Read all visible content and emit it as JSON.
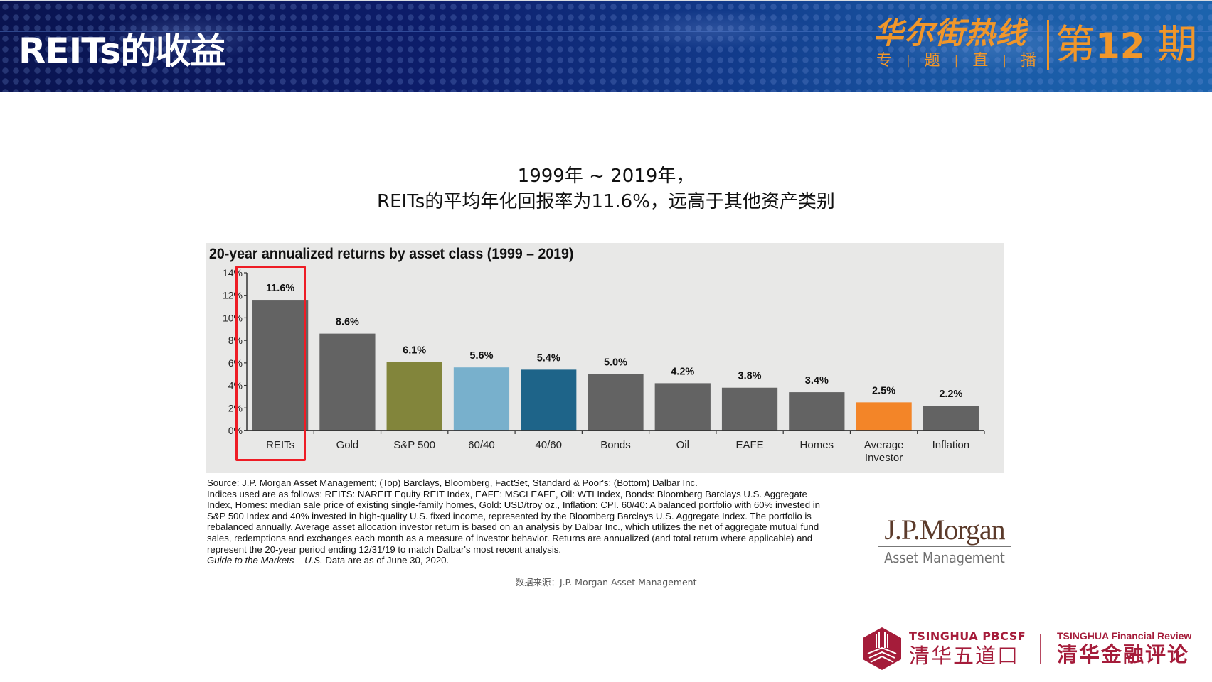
{
  "header": {
    "title": "REITs的收益",
    "brand_main": "华尔街热线",
    "brand_sub": [
      "专",
      "题",
      "直",
      "播"
    ],
    "issue_prefix": "第",
    "issue_number": "12",
    "issue_suffix": "期"
  },
  "headline": {
    "line1": "1999年 ~ 2019年，",
    "line2": "REITs的平均年化回报率为11.6%，远高于其他资产类别"
  },
  "chart_data": {
    "type": "bar",
    "title": "20-year annualized returns by asset class (1999 – 2019)",
    "xlabel": "",
    "ylabel": "",
    "ylim": [
      0,
      14
    ],
    "yticks": [
      0,
      2,
      4,
      6,
      8,
      10,
      12,
      14
    ],
    "ytick_labels": [
      "0%",
      "2%",
      "4%",
      "6%",
      "8%",
      "10%",
      "12%",
      "14%"
    ],
    "grid": false,
    "categories": [
      "REITs",
      "Gold",
      "S&P 500",
      "60/40",
      "40/60",
      "Bonds",
      "Oil",
      "EAFE",
      "Homes",
      "Average Investor",
      "Inflation"
    ],
    "category_lines": [
      [
        "REITs"
      ],
      [
        "Gold"
      ],
      [
        "S&P 500"
      ],
      [
        "60/40"
      ],
      [
        "40/60"
      ],
      [
        "Bonds"
      ],
      [
        "Oil"
      ],
      [
        "EAFE"
      ],
      [
        "Homes"
      ],
      [
        "Average",
        "Investor"
      ],
      [
        "Inflation"
      ]
    ],
    "values": [
      11.6,
      8.6,
      6.1,
      5.6,
      5.4,
      5.0,
      4.2,
      3.8,
      3.4,
      2.5,
      2.2
    ],
    "data_labels": [
      "11.6%",
      "8.6%",
      "6.1%",
      "5.6%",
      "5.4%",
      "5.0%",
      "4.2%",
      "3.8%",
      "3.4%",
      "2.5%",
      "2.2%"
    ],
    "colors": [
      "#636363",
      "#636363",
      "#82853b",
      "#78b0cc",
      "#1e6489",
      "#636363",
      "#636363",
      "#636363",
      "#636363",
      "#f38528",
      "#636363"
    ],
    "highlighted_category": "REITs",
    "highlight_color": "#ee1c25"
  },
  "notes": {
    "lines": [
      "Source: J.P. Morgan Asset Management; (Top) Barclays, Bloomberg, FactSet, Standard & Poor's; (Bottom) Dalbar Inc.",
      "Indices used are as follows: REITS: NAREIT Equity REIT Index, EAFE: MSCI EAFE, Oil: WTI Index, Bonds: Bloomberg Barclays U.S. Aggregate",
      "Index, Homes: median sale price of existing single-family homes, Gold: USD/troy oz., Inflation: CPI. 60/40: A balanced portfolio with 60% invested in",
      "S&P 500 Index and 40% invested in high-quality U.S. fixed income, represented by the Bloomberg Barclays U.S. Aggregate Index. The portfolio is",
      "rebalanced annually. Average asset allocation investor return is based on an analysis by Dalbar Inc., which utilizes the net of aggregate mutual fund",
      "sales, redemptions and exchanges each month as a measure of investor behavior. Returns are annualized (and total return where applicable) and",
      "represent the 20-year period ending 12/31/19 to match Dalbar's most recent analysis."
    ],
    "guide_italic": "Guide to the Markets – U.S.",
    "guide_rest": " Data are as of June 30, 2020."
  },
  "jpm_logo": {
    "name": "J.P.Morgan",
    "sub": "Asset Management"
  },
  "source_line": "数据来源：J.P. Morgan Asset Management",
  "footer": {
    "pbcsf_en": "TSINGHUA PBCSF",
    "pbcsf_cn": "清华五道口",
    "tfr_en": "TSINGHUA  Financial Review",
    "tfr_cn": "清华金融评论",
    "brand_color": "#a51c3a"
  }
}
